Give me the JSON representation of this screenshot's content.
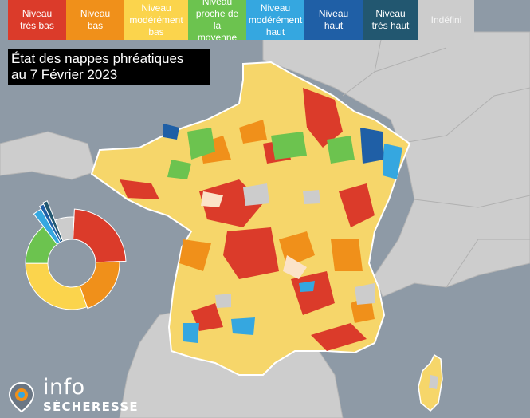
{
  "legend": [
    {
      "label": "Niveau\ntrès bas",
      "color": "#db3b2a"
    },
    {
      "label": "Niveau\nbas",
      "color": "#f0901a"
    },
    {
      "label": "Niveau\nmodérément\nbas",
      "color": "#fbd44c"
    },
    {
      "label": "Niveau\nproche de\nla\nmoyenne",
      "color": "#6cc34f"
    },
    {
      "label": "Niveau\nmodérément\nhaut",
      "color": "#35a7e0"
    },
    {
      "label": "Niveau\nhaut",
      "color": "#1f5fa6"
    },
    {
      "label": "Niveau\ntrès haut",
      "color": "#225770"
    },
    {
      "label": "Indéfini",
      "color": "#cccccc"
    }
  ],
  "title": {
    "line1": "État des nappes phréatiques",
    "line2": "au 7 Février 2023"
  },
  "chart_data": {
    "type": "pie",
    "categories": [
      "Niveau très bas",
      "Niveau bas",
      "Niveau modérément bas",
      "Niveau proche de la moyenne",
      "Niveau modérément haut",
      "Niveau haut",
      "Niveau très haut",
      "Indéfini"
    ],
    "values": [
      21,
      18,
      27,
      13,
      2,
      1,
      1,
      6
    ]
  },
  "brand": {
    "info": "info",
    "secheresse": "SÉCHERESSE"
  },
  "colors": {
    "sea": "#8e9aa6",
    "land": "#cdcdcd",
    "france_base": "#f6d66a"
  }
}
